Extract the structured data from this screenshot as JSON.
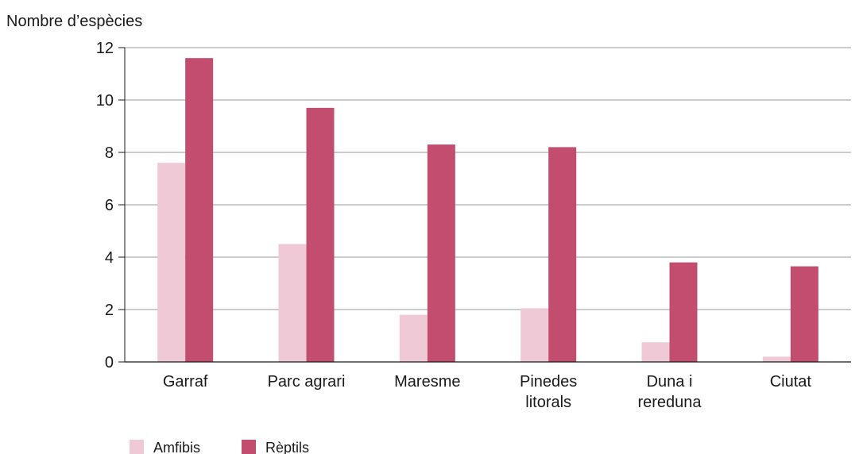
{
  "chart_data": {
    "type": "bar",
    "title": "",
    "xlabel": "",
    "ylabel": "Nombre d’espècies",
    "ylim": [
      0,
      12
    ],
    "yticks": [
      0,
      2,
      4,
      6,
      8,
      10,
      12
    ],
    "grid": true,
    "legend_position": "bottom-left",
    "categories": [
      [
        "Garraf"
      ],
      [
        "Parc agrari"
      ],
      [
        "Maresme"
      ],
      [
        "Pinedes",
        "litorals"
      ],
      [
        "Duna i",
        "rereduna"
      ],
      [
        "Ciutat"
      ]
    ],
    "series": [
      {
        "name": "Amfibis",
        "color": "#efc9d5",
        "values": [
          7.6,
          4.5,
          1.8,
          2.05,
          0.75,
          0.2
        ]
      },
      {
        "name": "Rèptils",
        "color": "#c24d6e",
        "values": [
          11.6,
          9.7,
          8.3,
          8.2,
          3.8,
          3.65
        ]
      }
    ]
  }
}
